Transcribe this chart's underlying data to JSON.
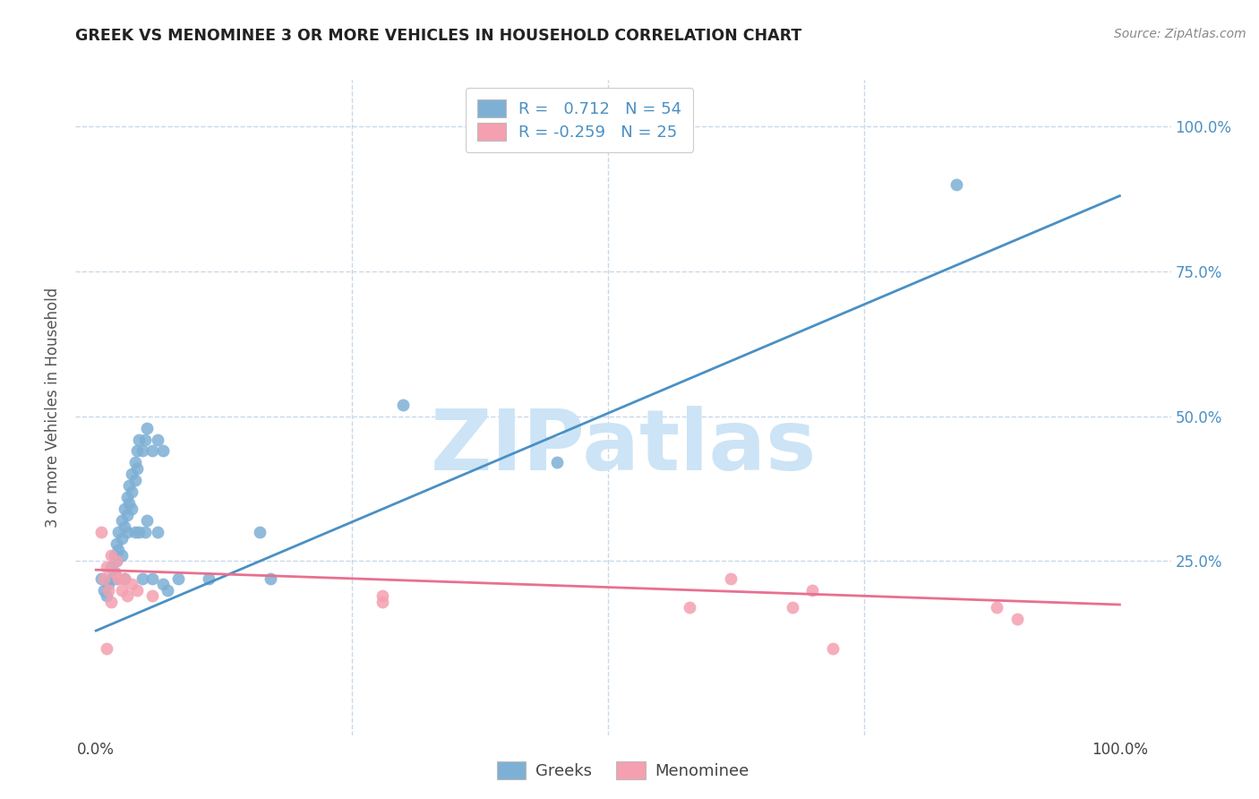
{
  "title": "GREEK VS MENOMINEE 3 OR MORE VEHICLES IN HOUSEHOLD CORRELATION CHART",
  "source": "Source: ZipAtlas.com",
  "ylabel": "3 or more Vehicles in Household",
  "watermark": "ZIPatlas",
  "legend_blue_R": "0.712",
  "legend_blue_N": "54",
  "legend_pink_R": "-0.259",
  "legend_pink_N": "25",
  "legend_label_blue": "Greeks",
  "legend_label_pink": "Menominee",
  "xlim": [
    -0.02,
    1.05
  ],
  "ylim": [
    -0.05,
    1.08
  ],
  "xticks": [
    0.0,
    0.25,
    0.5,
    0.75,
    1.0
  ],
  "yticks": [
    0.25,
    0.5,
    0.75,
    1.0
  ],
  "ytick_labels": [
    "25.0%",
    "50.0%",
    "75.0%",
    "100.0%"
  ],
  "xtick_labels": [
    "0.0%",
    "",
    "",
    "",
    "100.0%"
  ],
  "blue_color": "#7EB0D5",
  "pink_color": "#F4A0B0",
  "blue_line_color": "#4A90C4",
  "pink_line_color": "#E87090",
  "background_color": "#FFFFFF",
  "grid_color": "#C8D8E8",
  "blue_scatter": [
    [
      0.005,
      0.22
    ],
    [
      0.008,
      0.2
    ],
    [
      0.01,
      0.19
    ],
    [
      0.012,
      0.21
    ],
    [
      0.015,
      0.24
    ],
    [
      0.015,
      0.22
    ],
    [
      0.018,
      0.26
    ],
    [
      0.018,
      0.23
    ],
    [
      0.02,
      0.28
    ],
    [
      0.02,
      0.25
    ],
    [
      0.02,
      0.22
    ],
    [
      0.022,
      0.3
    ],
    [
      0.022,
      0.27
    ],
    [
      0.025,
      0.32
    ],
    [
      0.025,
      0.29
    ],
    [
      0.025,
      0.26
    ],
    [
      0.028,
      0.34
    ],
    [
      0.028,
      0.31
    ],
    [
      0.028,
      0.22
    ],
    [
      0.03,
      0.36
    ],
    [
      0.03,
      0.33
    ],
    [
      0.03,
      0.3
    ],
    [
      0.032,
      0.38
    ],
    [
      0.032,
      0.35
    ],
    [
      0.035,
      0.4
    ],
    [
      0.035,
      0.37
    ],
    [
      0.035,
      0.34
    ],
    [
      0.038,
      0.42
    ],
    [
      0.038,
      0.39
    ],
    [
      0.038,
      0.3
    ],
    [
      0.04,
      0.44
    ],
    [
      0.04,
      0.41
    ],
    [
      0.042,
      0.46
    ],
    [
      0.042,
      0.3
    ],
    [
      0.045,
      0.44
    ],
    [
      0.045,
      0.22
    ],
    [
      0.048,
      0.46
    ],
    [
      0.048,
      0.3
    ],
    [
      0.05,
      0.48
    ],
    [
      0.05,
      0.32
    ],
    [
      0.055,
      0.44
    ],
    [
      0.055,
      0.22
    ],
    [
      0.06,
      0.46
    ],
    [
      0.06,
      0.3
    ],
    [
      0.065,
      0.44
    ],
    [
      0.065,
      0.21
    ],
    [
      0.07,
      0.2
    ],
    [
      0.08,
      0.22
    ],
    [
      0.11,
      0.22
    ],
    [
      0.16,
      0.3
    ],
    [
      0.17,
      0.22
    ],
    [
      0.3,
      0.52
    ],
    [
      0.84,
      0.9
    ],
    [
      0.45,
      0.42
    ]
  ],
  "pink_scatter": [
    [
      0.005,
      0.3
    ],
    [
      0.008,
      0.22
    ],
    [
      0.01,
      0.1
    ],
    [
      0.01,
      0.24
    ],
    [
      0.012,
      0.2
    ],
    [
      0.015,
      0.26
    ],
    [
      0.015,
      0.18
    ],
    [
      0.018,
      0.23
    ],
    [
      0.02,
      0.25
    ],
    [
      0.022,
      0.22
    ],
    [
      0.025,
      0.2
    ],
    [
      0.028,
      0.22
    ],
    [
      0.03,
      0.19
    ],
    [
      0.035,
      0.21
    ],
    [
      0.04,
      0.2
    ],
    [
      0.055,
      0.19
    ],
    [
      0.28,
      0.19
    ],
    [
      0.28,
      0.18
    ],
    [
      0.58,
      0.17
    ],
    [
      0.62,
      0.22
    ],
    [
      0.68,
      0.17
    ],
    [
      0.7,
      0.2
    ],
    [
      0.72,
      0.1
    ],
    [
      0.88,
      0.17
    ],
    [
      0.9,
      0.15
    ]
  ],
  "blue_line_x": [
    0.0,
    1.0
  ],
  "blue_line_y": [
    0.13,
    0.88
  ],
  "pink_line_x": [
    0.0,
    1.0
  ],
  "pink_line_y": [
    0.235,
    0.175
  ]
}
